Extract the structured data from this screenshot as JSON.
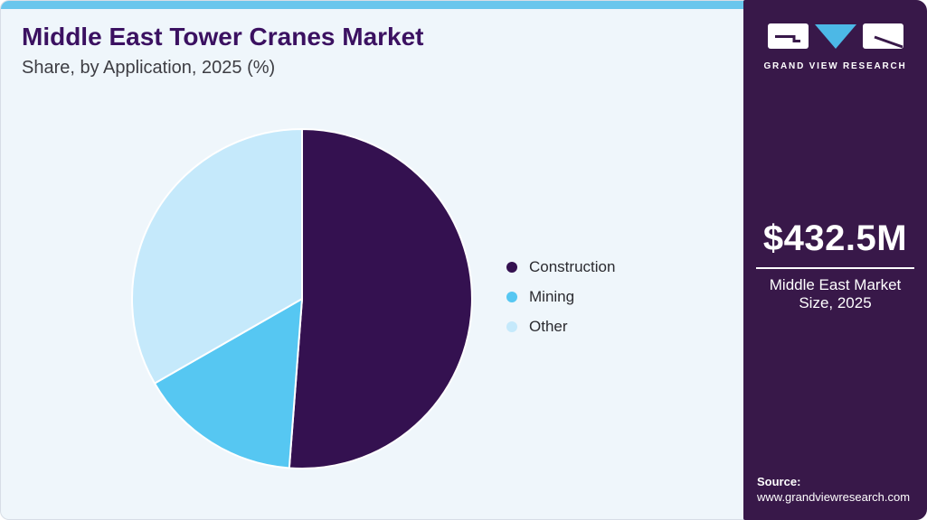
{
  "header": {
    "title": "Middle East Tower Cranes Market",
    "subtitle": "Share, by Application, 2025 (%)"
  },
  "chart_data": {
    "type": "pie",
    "title": "Middle East Tower Cranes Market Share, by Application, 2025 (%)",
    "unit": "percent",
    "start_angle_deg": 0,
    "direction": "clockwise",
    "legend_position": "right",
    "slices": [
      {
        "label": "Construction",
        "value": 51.2,
        "color": "#341150"
      },
      {
        "label": "Mining",
        "value": 15.5,
        "color": "#56c7f2"
      },
      {
        "label": "Other",
        "value": 33.3,
        "color": "#c5e9fb"
      }
    ]
  },
  "sidebar": {
    "brand": "GRAND VIEW RESEARCH",
    "stat_value": "$432.5M",
    "stat_label": "Middle East Market Size, 2025",
    "source_label": "Source:",
    "source_url": "www.grandviewresearch.com"
  },
  "colors": {
    "accent_bar": "#69c6ed",
    "card_bg": "#eff6fb",
    "sidebar_bg": "#381849",
    "title_text": "#3b1161",
    "subtitle_text": "#3d3d43",
    "legend_text": "#2b2b30",
    "logo_triangle": "#4cb8e6",
    "logo_glyph": "#381849",
    "slice_stroke": "#ffffff"
  }
}
